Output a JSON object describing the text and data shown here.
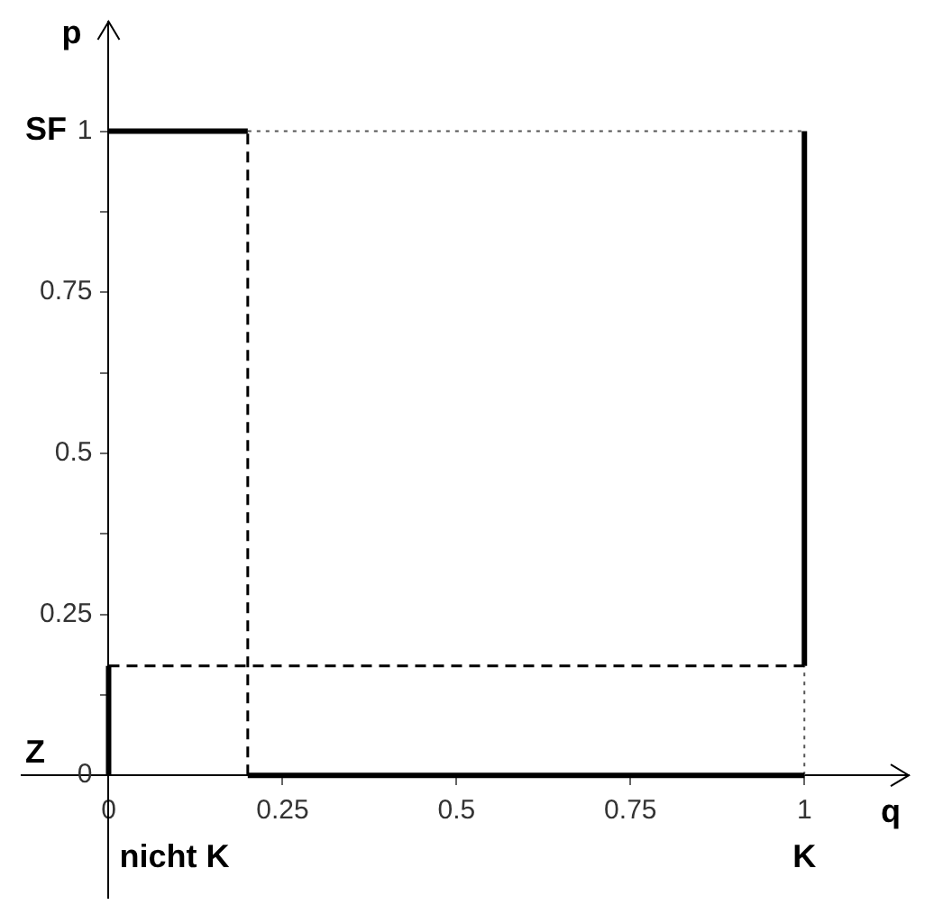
{
  "chart_data": {
    "type": "line",
    "xlabel": "q",
    "ylabel": "p",
    "xlim": [
      -0.125,
      1.15
    ],
    "ylim": [
      -0.19,
      1.17
    ],
    "xticks": [
      0,
      0.25,
      0.5,
      0.75,
      1
    ],
    "yticks": [
      0,
      {
        "value": 0.125,
        "label": null
      },
      0.25,
      {
        "value": 0.375,
        "label": null
      },
      0.5,
      {
        "value": 0.625,
        "label": null
      },
      0.75,
      {
        "value": 0.875,
        "label": null
      },
      1
    ],
    "grid": false,
    "legend": false,
    "marker": "none",
    "series": [
      {
        "color": "#000000",
        "line_style": "solid",
        "x": [
          0,
          0
        ],
        "values": [
          0,
          0.17
        ]
      },
      {
        "color": "#000000",
        "line_style": "solid",
        "x": [
          0,
          0.2
        ],
        "values": [
          1,
          1
        ]
      },
      {
        "color": "#000000",
        "line_style": "solid",
        "x": [
          0.2,
          1
        ],
        "values": [
          0,
          0
        ]
      },
      {
        "color": "#000000",
        "line_style": "solid",
        "x": [
          1,
          1
        ],
        "values": [
          0.17,
          1
        ]
      },
      {
        "color": "#000000",
        "line_style": "dashed",
        "x": [
          0,
          1
        ],
        "values": [
          0.17,
          0.17
        ]
      },
      {
        "color": "#000000",
        "line_style": "dashed",
        "x": [
          0.2,
          0.2
        ],
        "values": [
          0,
          1
        ]
      },
      {
        "color": "#555555",
        "line_style": "dotted",
        "x": [
          0.2,
          1
        ],
        "values": [
          1,
          1
        ]
      },
      {
        "color": "#555555",
        "line_style": "dotted",
        "x": [
          1,
          1
        ],
        "values": [
          0,
          0.17
        ]
      }
    ],
    "annotations": [
      "SF",
      "Z",
      "nicht K",
      "K"
    ]
  }
}
